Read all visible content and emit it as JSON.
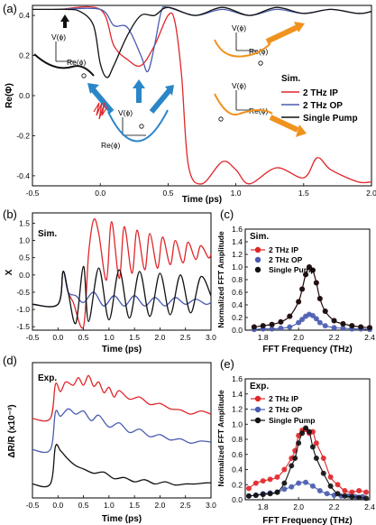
{
  "panels": {
    "a": {
      "label": "(a)",
      "ylabel": "Re(Φ)",
      "xlabel": "Time (ps)",
      "xticks": [
        "-0.5",
        "0.0",
        "0.5",
        "1.0",
        "1.5",
        "2.0"
      ],
      "yticks": [
        "0.4",
        "0.2",
        "0.0",
        "-0.2",
        "-0.4"
      ],
      "legend_title": "Sim.",
      "legend": [
        "2 THz IP",
        "2 THz OP",
        "Single Pump"
      ],
      "inset_v": "V(ϕ)",
      "inset_re": "Re(ϕ)"
    },
    "b": {
      "label": "(b)",
      "tag": "Sim.",
      "ylabel": "X",
      "xlabel": "Time (ps)",
      "xticks": [
        "-0.5",
        "0.0",
        "0.5",
        "1.0",
        "1.5",
        "2.0",
        "2.5",
        "3.0"
      ],
      "yticks": [
        "1.5",
        "1.0",
        "0.5",
        "0.0",
        "-0.5",
        "-1.0",
        "-1.5"
      ]
    },
    "c": {
      "label": "(c)",
      "tag": "Sim.",
      "ylabel": "Normalized FFT Amplitude",
      "xlabel": "FFT Frequency (THz)",
      "xticks": [
        "1.8",
        "2.0",
        "2.2",
        "2.4"
      ],
      "yticks": [
        "1.6",
        "1.4",
        "1.2",
        "1.0",
        "0.8",
        "0.6",
        "0.4",
        "0.2",
        "0.0"
      ],
      "legend": [
        "2 THz IP",
        "2 THz OP",
        "Single Pump"
      ]
    },
    "d": {
      "label": "(d)",
      "tag": "Exp.",
      "ylabel": "ΔR/R (x10⁻³)",
      "xlabel": "Time (ps)",
      "xticks": [
        "-0.5",
        "0.0",
        "0.5",
        "1.0",
        "1.5",
        "2.0",
        "2.5",
        "3.0"
      ]
    },
    "e": {
      "label": "(e)",
      "tag": "Exp.",
      "ylabel": "Normalized FFT Amplitude",
      "xlabel": "FFT Frequency (THz)",
      "xticks": [
        "1.8",
        "2.0",
        "2.2",
        "2.4"
      ],
      "yticks": [
        "1.6",
        "1.4",
        "1.2",
        "1.0",
        "0.8",
        "0.6",
        "0.4",
        "0.2",
        "0.0"
      ],
      "legend": [
        "2 THz IP",
        "2 THz OP",
        "Single Pump"
      ]
    }
  },
  "colors": {
    "ip": "#e0262a",
    "op": "#4a5cb0",
    "single": "#111111",
    "arrow_blue": "#2b86c8",
    "arrow_orange": "#f0921e"
  },
  "chart_data": [
    {
      "panel": "a",
      "type": "line",
      "xlabel": "Time (ps)",
      "ylabel": "Re(Φ)",
      "xlim": [
        -0.5,
        2.0
      ],
      "ylim": [
        -0.45,
        0.45
      ],
      "series": [
        {
          "name": "2 THz IP",
          "color": "#e0262a",
          "x": [
            -0.3,
            0.0,
            0.1,
            0.2,
            0.3,
            0.4,
            0.5,
            0.55,
            0.6,
            0.65,
            0.75,
            0.9,
            1.0,
            1.1,
            1.3,
            1.5,
            1.6,
            1.7,
            1.9,
            2.0
          ],
          "y": [
            0.43,
            0.43,
            0.25,
            0.18,
            0.15,
            0.25,
            0.4,
            0.37,
            0.1,
            -0.35,
            -0.44,
            -0.33,
            -0.37,
            -0.44,
            -0.36,
            -0.41,
            -0.31,
            -0.37,
            -0.43,
            -0.43
          ]
        },
        {
          "name": "2 THz OP",
          "color": "#4a5cb0",
          "x": [
            -0.3,
            0.0,
            0.1,
            0.2,
            0.3,
            0.35,
            0.4,
            0.45,
            0.5,
            0.7,
            0.9,
            1.1,
            1.3,
            1.5,
            1.7,
            1.9,
            2.0
          ],
          "y": [
            0.43,
            0.43,
            0.35,
            0.34,
            0.2,
            0.12,
            0.25,
            0.42,
            0.44,
            0.4,
            0.43,
            0.4,
            0.43,
            0.41,
            0.43,
            0.41,
            0.42
          ]
        },
        {
          "name": "Single Pump",
          "color": "#111111",
          "x": [
            -0.5,
            -0.35,
            -0.25,
            -0.15,
            -0.05,
            0.0,
            0.05,
            0.1,
            0.2,
            0.3,
            0.4,
            0.5,
            0.7,
            0.9,
            1.1,
            1.3,
            1.5,
            1.7,
            1.9,
            2.0
          ],
          "y": [
            0.43,
            0.43,
            0.43,
            0.42,
            0.35,
            0.16,
            0.09,
            0.15,
            0.3,
            0.4,
            0.4,
            0.44,
            0.4,
            0.44,
            0.4,
            0.44,
            0.41,
            0.43,
            0.41,
            0.42
          ]
        }
      ]
    },
    {
      "panel": "b",
      "type": "line",
      "xlabel": "Time (ps)",
      "ylabel": "X",
      "xlim": [
        -0.5,
        3.0
      ],
      "ylim": [
        -1.6,
        1.8
      ],
      "series": [
        {
          "name": "2 THz IP",
          "color": "#e0262a",
          "x": [
            -0.5,
            0.0,
            0.1,
            0.2,
            0.3,
            0.5,
            0.6,
            0.7,
            0.8,
            0.95,
            1.05,
            1.2,
            1.3,
            1.45,
            1.55,
            1.7,
            1.8,
            1.95,
            2.05,
            2.2,
            2.3,
            2.45,
            2.55,
            2.7,
            2.8,
            2.95,
            3.0
          ],
          "y": [
            -0.85,
            -0.85,
            0.1,
            -0.5,
            -0.8,
            -1.5,
            0.6,
            1.6,
            1.2,
            -0.15,
            1.55,
            -0.1,
            1.4,
            0.05,
            1.3,
            0.15,
            1.2,
            0.2,
            1.1,
            0.3,
            1.0,
            0.35,
            0.95,
            0.45,
            0.85,
            0.5,
            0.6
          ]
        },
        {
          "name": "2 THz OP",
          "color": "#4a5cb0",
          "x": [
            -0.5,
            0.0,
            0.1,
            0.2,
            0.35,
            0.5,
            0.7,
            0.9,
            1.1,
            1.3,
            1.5,
            1.7,
            1.9,
            2.1,
            2.3,
            2.5,
            2.7,
            2.9,
            3.0
          ],
          "y": [
            -0.85,
            -0.85,
            0.1,
            -0.5,
            -0.6,
            -0.8,
            -0.5,
            -0.9,
            -0.6,
            -0.9,
            -0.6,
            -0.9,
            -0.65,
            -0.9,
            -0.65,
            -0.85,
            -0.7,
            -0.85,
            -0.8
          ]
        },
        {
          "name": "Single Pump",
          "color": "#111111",
          "x": [
            -0.5,
            0.0,
            0.1,
            0.2,
            0.35,
            0.5,
            0.6,
            0.8,
            1.0,
            1.2,
            1.4,
            1.6,
            1.8,
            2.0,
            2.2,
            2.4,
            2.6,
            2.8,
            3.0
          ],
          "y": [
            -0.85,
            -0.85,
            0.1,
            -0.5,
            -1.4,
            0.25,
            -1.35,
            0.2,
            -1.3,
            0.15,
            -1.25,
            0.1,
            -1.2,
            0.05,
            -1.15,
            0.0,
            -1.1,
            -0.05,
            -0.6
          ]
        }
      ]
    },
    {
      "panel": "c",
      "type": "scatter",
      "xlabel": "FFT Frequency (THz)",
      "ylabel": "Normalized FFT Amplitude",
      "xlim": [
        1.7,
        2.4
      ],
      "ylim": [
        0,
        1.6
      ],
      "x": [
        1.75,
        1.8,
        1.85,
        1.9,
        1.95,
        2.0,
        2.02,
        2.04,
        2.06,
        2.08,
        2.1,
        2.12,
        2.15,
        2.2,
        2.25,
        2.3,
        2.35,
        2.4
      ],
      "series": [
        {
          "name": "2 THz IP",
          "color": "#e0262a",
          "values": [
            0.05,
            0.07,
            0.09,
            0.13,
            0.22,
            0.45,
            0.65,
            0.88,
            1.0,
            0.95,
            0.75,
            0.5,
            0.3,
            0.15,
            0.1,
            0.07,
            0.05,
            0.04
          ]
        },
        {
          "name": "2 THz OP",
          "color": "#4a5cb0",
          "values": [
            0.01,
            0.02,
            0.02,
            0.03,
            0.05,
            0.12,
            0.17,
            0.22,
            0.25,
            0.23,
            0.18,
            0.12,
            0.07,
            0.04,
            0.03,
            0.02,
            0.02,
            0.01
          ]
        },
        {
          "name": "Single Pump",
          "color": "#111111",
          "values": [
            0.05,
            0.07,
            0.09,
            0.13,
            0.22,
            0.45,
            0.65,
            0.88,
            1.0,
            0.95,
            0.75,
            0.5,
            0.3,
            0.15,
            0.1,
            0.07,
            0.05,
            0.04
          ]
        }
      ]
    },
    {
      "panel": "d",
      "type": "line",
      "xlabel": "Time (ps)",
      "ylabel": "ΔR/R (x10⁻³)",
      "xlim": [
        -0.5,
        3.0
      ],
      "series": [
        {
          "name": "2 THz IP",
          "color": "#e0262a",
          "x": [
            -0.5,
            -0.15,
            -0.05,
            0.05,
            0.15,
            0.3,
            0.4,
            0.5,
            0.6,
            0.7,
            0.8,
            0.9,
            1.0,
            1.1,
            1.2,
            1.4,
            1.6,
            1.8,
            2.0,
            2.2,
            2.4,
            2.6,
            2.8,
            3.0
          ],
          "y": [
            9.6,
            9.6,
            12.8,
            12.1,
            13.0,
            12.7,
            13.4,
            12.7,
            13.6,
            12.6,
            13.0,
            12.0,
            12.5,
            11.6,
            12.2,
            11.4,
            11.6,
            10.9,
            11.0,
            10.5,
            10.4,
            10.0,
            10.3,
            10.0
          ]
        },
        {
          "name": "2 THz OP",
          "color": "#4a5cb0",
          "x": [
            -0.5,
            -0.15,
            -0.05,
            0.05,
            0.2,
            0.35,
            0.5,
            0.65,
            0.8,
            1.0,
            1.2,
            1.4,
            1.6,
            1.8,
            2.0,
            2.2,
            2.4,
            2.6,
            2.8,
            3.0
          ],
          "y": [
            6.7,
            6.7,
            10.2,
            9.8,
            10.5,
            10.0,
            10.3,
            9.4,
            9.9,
            8.8,
            9.2,
            8.3,
            8.6,
            7.9,
            8.1,
            7.6,
            7.7,
            7.3,
            7.5,
            7.4
          ]
        },
        {
          "name": "Single Pump",
          "color": "#111111",
          "x": [
            -0.5,
            -0.15,
            -0.05,
            0.05,
            0.2,
            0.35,
            0.5,
            0.7,
            0.9,
            1.1,
            1.3,
            1.5,
            1.7,
            1.9,
            2.1,
            2.3,
            2.5,
            2.7,
            2.9,
            3.0
          ],
          "y": [
            3.5,
            3.5,
            7.0,
            6.6,
            5.8,
            5.2,
            4.9,
            4.5,
            4.6,
            4.0,
            4.1,
            3.7,
            3.9,
            3.5,
            3.7,
            3.4,
            3.5,
            3.5,
            3.6,
            3.6
          ]
        }
      ]
    },
    {
      "panel": "e",
      "type": "scatter",
      "xlabel": "FFT Frequency (THz)",
      "ylabel": "Normalized FFT Amplitude",
      "xlim": [
        1.7,
        2.4
      ],
      "ylim": [
        0,
        1.6
      ],
      "series": [
        {
          "name": "2 THz IP",
          "color": "#e0262a",
          "x": [
            1.72,
            1.76,
            1.8,
            1.84,
            1.88,
            1.92,
            1.96,
            1.98,
            2.0,
            2.02,
            2.04,
            2.06,
            2.08,
            2.1,
            2.14,
            2.18,
            2.22,
            2.26,
            2.3,
            2.34,
            2.38
          ],
          "values": [
            0.15,
            0.22,
            0.25,
            0.27,
            0.3,
            0.4,
            0.55,
            0.65,
            0.85,
            0.92,
            0.93,
            0.88,
            0.9,
            0.75,
            0.55,
            0.3,
            0.2,
            0.12,
            0.1,
            0.12,
            0.1
          ]
        },
        {
          "name": "2 THz OP",
          "color": "#4a5cb0",
          "x": [
            1.72,
            1.76,
            1.8,
            1.84,
            1.88,
            1.92,
            1.96,
            2.0,
            2.04,
            2.08,
            2.12,
            2.16,
            2.2,
            2.24,
            2.28,
            2.32,
            2.36
          ],
          "values": [
            0.05,
            0.06,
            0.08,
            0.09,
            0.1,
            0.14,
            0.17,
            0.22,
            0.23,
            0.18,
            0.12,
            0.08,
            0.06,
            0.05,
            0.05,
            0.04,
            0.04
          ]
        },
        {
          "name": "Single Pump",
          "color": "#111111",
          "x": [
            1.72,
            1.76,
            1.8,
            1.84,
            1.88,
            1.92,
            1.96,
            1.98,
            2.0,
            2.02,
            2.04,
            2.06,
            2.08,
            2.1,
            2.14,
            2.18,
            2.22,
            2.26,
            2.3,
            2.34,
            2.38
          ],
          "values": [
            0.05,
            0.06,
            0.07,
            0.08,
            0.1,
            0.22,
            0.45,
            0.55,
            0.75,
            0.88,
            0.95,
            0.9,
            0.7,
            0.55,
            0.35,
            0.18,
            0.08,
            0.05,
            0.04,
            0.03,
            0.02
          ]
        }
      ]
    }
  ]
}
